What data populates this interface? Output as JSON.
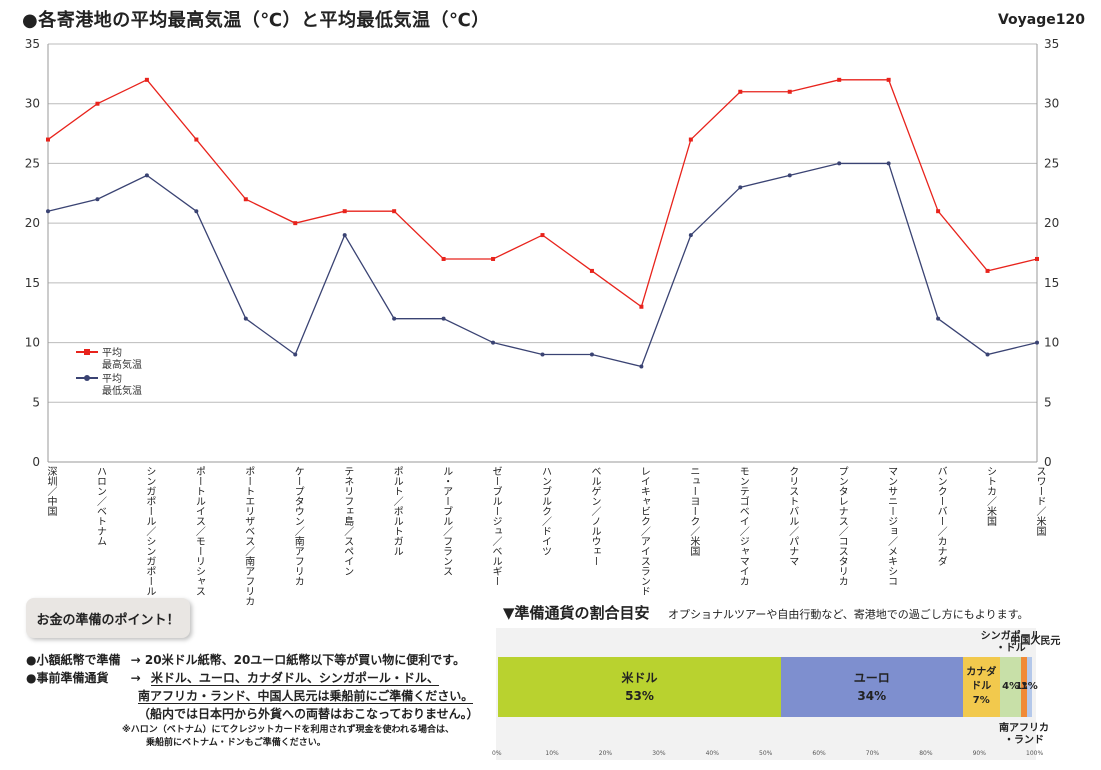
{
  "header": {
    "title": "●各寄港地の平均最高気温（℃）と平均最低気温（℃）",
    "voyage": "Voyage120"
  },
  "chart_data": {
    "type": "line",
    "categories": [
      "深圳／中国",
      "ハロン／ベトナム",
      "シンガポール／シンガポール",
      "ポートルイス／モーリシャス",
      "ポートエリザベス／南アフリカ",
      "ケープタウン／南アフリカ",
      "テネリフェ島／スペイン",
      "ポルト／ポルトガル",
      "ル・アーブル／フランス",
      "ゼーブルージュ／ベルギー",
      "ハンブルク／ドイツ",
      "ベルゲン／ノルウェー",
      "レイキャビク／アイスランド",
      "ニューヨーク／米国",
      "モンテゴベイ／ジャマイカ",
      "クリストバル／パナマ",
      "プンタレナス／コスタリカ",
      "マンサニージョ／メキシコ",
      "バンクーバー／カナダ",
      "シトカ／米国",
      "スワード／米国"
    ],
    "series": [
      {
        "name": "平均最高気温",
        "color": "#e8231c",
        "values": [
          27,
          30,
          32,
          27,
          22,
          20,
          21,
          21,
          17,
          17,
          19,
          16,
          13,
          27,
          31,
          31,
          32,
          32,
          21,
          16,
          17
        ]
      },
      {
        "name": "平均最低気温",
        "color": "#3a4373",
        "values": [
          21,
          22,
          24,
          21,
          12,
          9,
          19,
          12,
          12,
          10,
          9,
          9,
          8,
          19,
          23,
          24,
          25,
          25,
          12,
          9,
          10
        ]
      }
    ],
    "legend": [
      [
        "平均",
        "最高気温"
      ],
      [
        "平均",
        "最低気温"
      ]
    ],
    "yticks": [
      "0",
      "5",
      "10",
      "15",
      "20",
      "25",
      "30",
      "35"
    ],
    "ylim": [
      0,
      35
    ],
    "grid": true,
    "legend_position": "left-middle"
  },
  "tips": {
    "box_title": "お金の準備のポイント！",
    "line1_label": "●小額紙幣で準備",
    "line1_text": "→ 20米ドル紙幣、20ユーロ紙幣以下等が買い物に便利です。",
    "line2_label": "●事前準備通貨",
    "line2_arrow": "→",
    "line2_text": "米ドル、ユーロ、カナダドル、シンガポール・ドル、",
    "line3_text": "南アフリカ・ランド、中国人民元は乗船前にご準備ください。",
    "line4_text": "（船内では日本円から外貨への両替はおこなっておりません。）",
    "note1": "※ハロン（ベトナム）にてクレジットカードを利用されず現金を使われる場合は、",
    "note2": "乗船前にベトナム・ドンもご準備ください。"
  },
  "currency": {
    "title": "▼準備通貨の割合目安",
    "subtitle": "オプショナルツアーや自由行動など、寄港地での過ごし方にもよります。",
    "ticks": [
      "0%",
      "10%",
      "20%",
      "30%",
      "40%",
      "50%",
      "60%",
      "70%",
      "80%",
      "90%",
      "100%"
    ],
    "segments": [
      {
        "name": "米ドル",
        "pct": 53,
        "pct_label": "53%",
        "color": "#b9d22f"
      },
      {
        "name": "ユーロ",
        "pct": 34,
        "pct_label": "34%",
        "color": "#7e8fcf"
      },
      {
        "name": "カナダ\nドル",
        "pct": 7,
        "pct_label": "7%",
        "color": "#f2c94d"
      },
      {
        "name": "シンガポール\n・ドル",
        "pct": 4,
        "pct_label": "4%",
        "color": "#c8e0a8"
      },
      {
        "name": "南アフリカ\n・ランド",
        "pct": 1,
        "pct_label": "1%",
        "color": "#f08a37"
      },
      {
        "name": "中国人民元",
        "pct": 1,
        "pct_label": "1%",
        "color": "#b4c8ea"
      }
    ]
  }
}
